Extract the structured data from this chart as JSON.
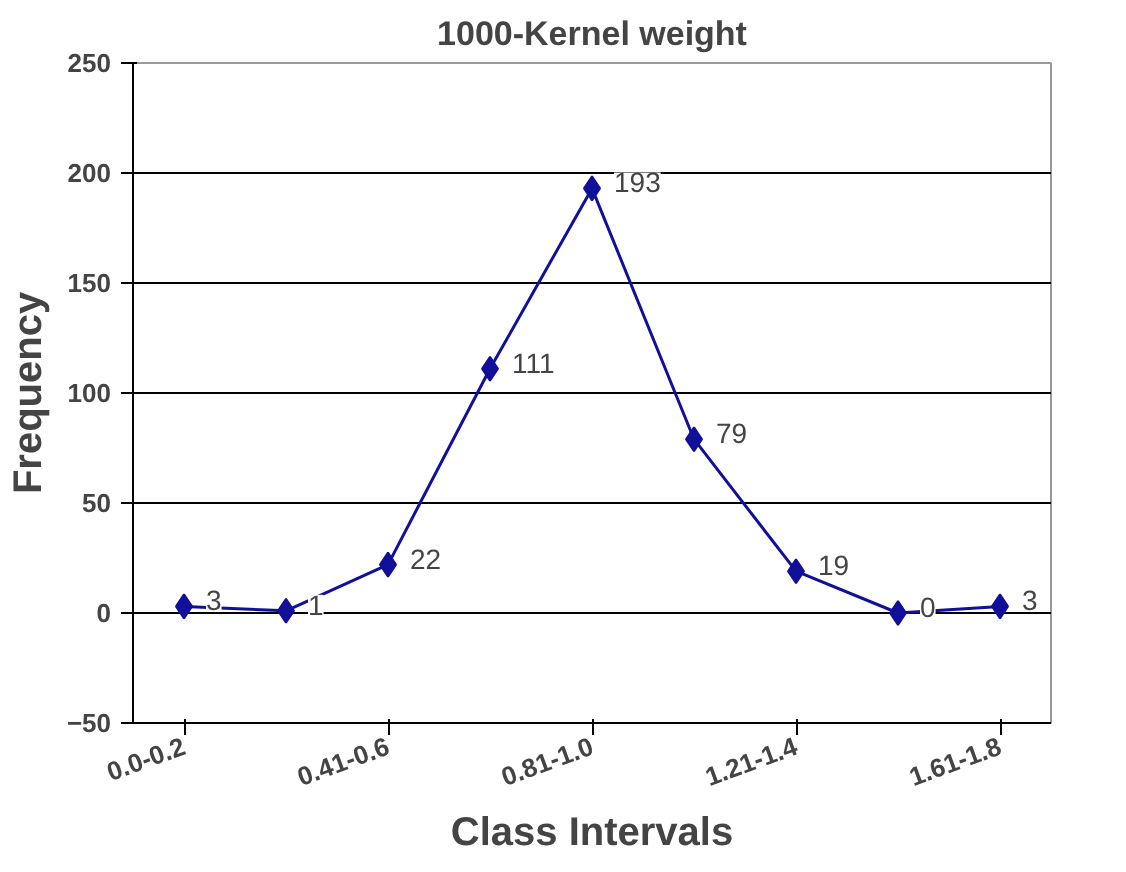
{
  "chart_data": {
    "type": "line",
    "title": "1000-Kernel weight",
    "xlabel": "Class Intervals",
    "ylabel": "Frequency",
    "categories": [
      "0.0-0.2",
      null,
      "0.41-0.6",
      null,
      "0.81-1.0",
      null,
      "1.21-1.4",
      null,
      "1.61-1.8"
    ],
    "series": [
      {
        "color": "#10109a",
        "values": [
          3,
          1,
          22,
          111,
          193,
          79,
          19,
          0,
          3
        ]
      }
    ],
    "ylim": [
      -50,
      250
    ],
    "yticks": [
      -50,
      0,
      50,
      100,
      150,
      200,
      250
    ],
    "grid": "y",
    "marker": "diamond",
    "line_style": "solid",
    "data_labels": true
  }
}
